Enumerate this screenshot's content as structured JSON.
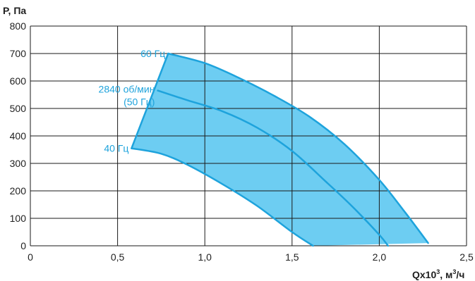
{
  "chart_data": {
    "type": "area",
    "ylabel": "P, Па",
    "xlabel": {
      "base": "Qx10",
      "exp": "3",
      "mid": ", м",
      "unit_exp": "3",
      "tail": "/ч"
    },
    "xlim": [
      0,
      2.5
    ],
    "ylim": [
      0,
      800
    ],
    "x_ticks": [
      {
        "value": 0,
        "label": "0"
      },
      {
        "value": 0.5,
        "label": "0,5"
      },
      {
        "value": 1.0,
        "label": "1,0"
      },
      {
        "value": 1.5,
        "label": "1,5"
      },
      {
        "value": 2.0,
        "label": "2,0"
      },
      {
        "value": 2.5,
        "label": "2,5"
      }
    ],
    "y_ticks": [
      0,
      100,
      200,
      300,
      400,
      500,
      600,
      700,
      800
    ],
    "grid": true,
    "colors": {
      "fill": "#6dcdf2",
      "curve": "#1ea3dc",
      "label": "#1ea3dc",
      "grid": "#1a1a1a"
    },
    "series": [
      {
        "label_lines": [
          "60 Гц"
        ],
        "x": [
          0.79,
          1.0,
          1.2,
          1.4,
          1.6,
          1.8,
          2.0,
          2.15,
          2.28
        ],
        "y": [
          700,
          665,
          610,
          545,
          470,
          370,
          240,
          120,
          10
        ]
      },
      {
        "label_lines": [
          "2840 об/мин",
          "(50 Гц)"
        ],
        "x": [
          0.73,
          0.9,
          1.1,
          1.3,
          1.5,
          1.7,
          1.85,
          2.0,
          2.05
        ],
        "y": [
          565,
          530,
          490,
          430,
          345,
          230,
          140,
          40,
          0
        ]
      },
      {
        "label_lines": [
          "40 Гц"
        ],
        "x": [
          0.58,
          0.75,
          0.9,
          1.1,
          1.3,
          1.5,
          1.62
        ],
        "y": [
          355,
          335,
          295,
          225,
          145,
          50,
          0
        ]
      }
    ]
  }
}
